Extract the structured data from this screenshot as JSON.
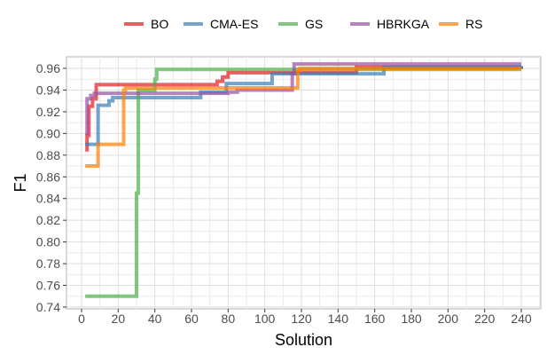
{
  "chart_data": {
    "type": "line",
    "xlabel": "Solution",
    "ylabel": "F1",
    "xlim": [
      -7,
      250
    ],
    "ylim": [
      0.7395,
      0.9705
    ],
    "xticks": [
      0,
      20,
      40,
      60,
      80,
      100,
      120,
      140,
      160,
      180,
      200,
      220,
      240
    ],
    "yticks": [
      0.74,
      0.76,
      0.78,
      0.8,
      0.82,
      0.84,
      0.86,
      0.88,
      0.9,
      0.92,
      0.94,
      0.96
    ],
    "grid": true,
    "legend_position": "top",
    "step": true,
    "series": [
      {
        "name": "BO",
        "color": "#E41A1C",
        "x": [
          2,
          3,
          4,
          6,
          8,
          74,
          77,
          80,
          150,
          240
        ],
        "y": [
          0.885,
          0.898,
          0.925,
          0.932,
          0.945,
          0.948,
          0.952,
          0.956,
          0.961,
          0.962
        ]
      },
      {
        "name": "CMA-ES",
        "color": "#377EB8",
        "x": [
          2,
          9,
          15,
          17,
          65,
          79,
          104,
          165,
          240
        ],
        "y": [
          0.89,
          0.926,
          0.93,
          0.933,
          0.938,
          0.946,
          0.955,
          0.961,
          0.962
        ]
      },
      {
        "name": "GS",
        "color": "#4DAF4A",
        "x": [
          2,
          30,
          31,
          40,
          41,
          240
        ],
        "y": [
          0.75,
          0.845,
          0.94,
          0.95,
          0.959,
          0.959
        ]
      },
      {
        "name": "HBRKGA",
        "color": "#984EA3",
        "x": [
          2,
          3,
          5,
          7,
          80,
          85,
          115,
          116,
          240
        ],
        "y": [
          0.9,
          0.932,
          0.935,
          0.937,
          0.938,
          0.94,
          0.955,
          0.964,
          0.964
        ]
      },
      {
        "name": "RS",
        "color": "#FF7F00",
        "x": [
          2,
          9,
          23,
          24,
          118,
          119,
          240
        ],
        "y": [
          0.87,
          0.89,
          0.94,
          0.942,
          0.958,
          0.96,
          0.96
        ]
      }
    ]
  }
}
